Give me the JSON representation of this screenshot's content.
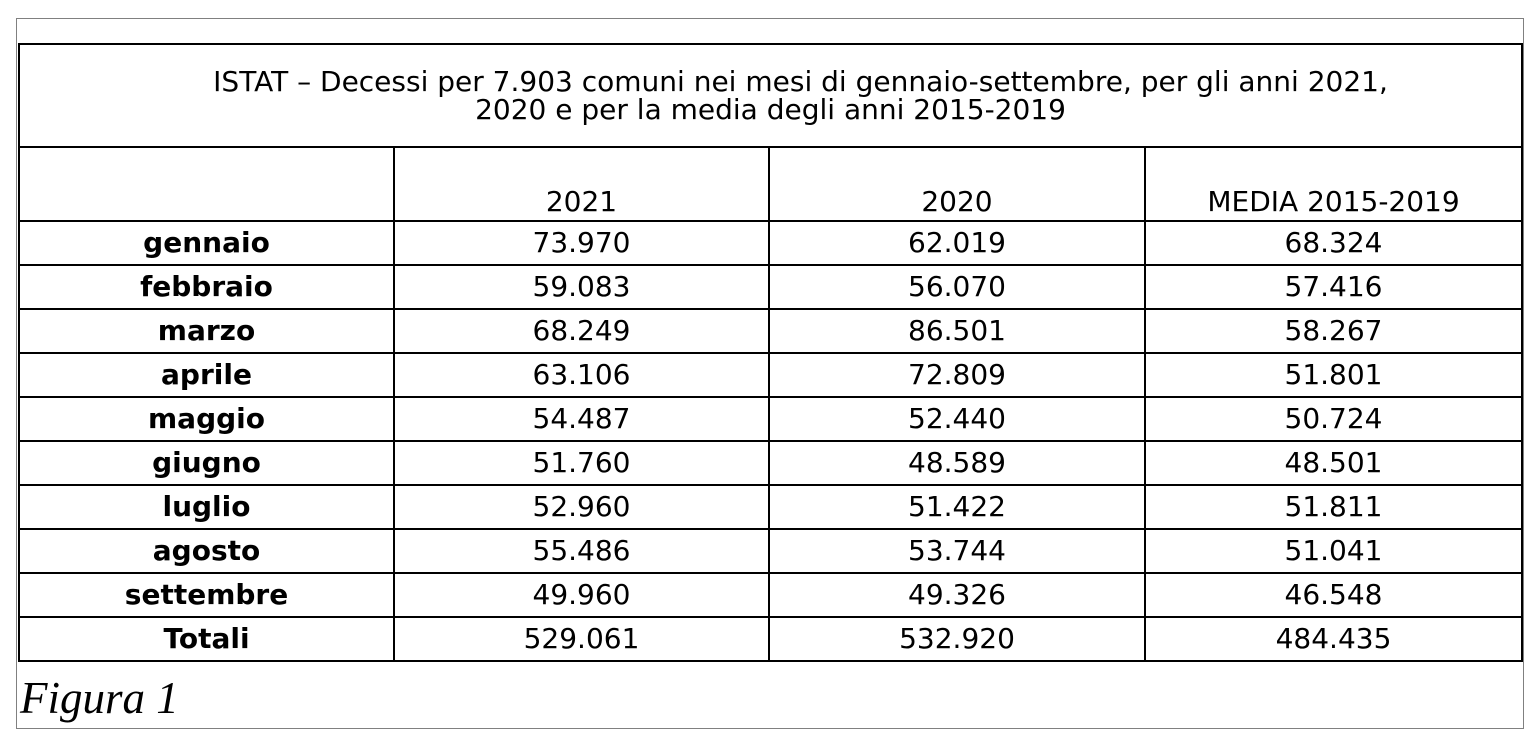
{
  "table": {
    "title_line1": "ISTAT – Decessi per 7.903 comuni nei mesi di gennaio-settembre, per gli anni 2021,",
    "title_line2": "2020 e per la media degli anni 2015-2019",
    "headers": [
      "",
      "2021",
      "2020",
      "MEDIA 2015-2019"
    ],
    "rows": [
      {
        "label": "gennaio",
        "values": [
          "73.970",
          "62.019",
          "68.324"
        ]
      },
      {
        "label": "febbraio",
        "values": [
          "59.083",
          "56.070",
          "57.416"
        ]
      },
      {
        "label": "marzo",
        "values": [
          "68.249",
          "86.501",
          "58.267"
        ]
      },
      {
        "label": "aprile",
        "values": [
          "63.106",
          "72.809",
          "51.801"
        ]
      },
      {
        "label": "maggio",
        "values": [
          "54.487",
          "52.440",
          "50.724"
        ]
      },
      {
        "label": "giugno",
        "values": [
          "51.760",
          "48.589",
          "48.501"
        ]
      },
      {
        "label": "luglio",
        "values": [
          "52.960",
          "51.422",
          "51.811"
        ]
      },
      {
        "label": "agosto",
        "values": [
          "55.486",
          "53.744",
          "51.041"
        ]
      },
      {
        "label": "settembre",
        "values": [
          "49.960",
          "49.326",
          "46.548"
        ]
      },
      {
        "label": "Totali",
        "values": [
          "529.061",
          "532.920",
          "484.435"
        ]
      }
    ]
  },
  "caption": "Figura 1"
}
